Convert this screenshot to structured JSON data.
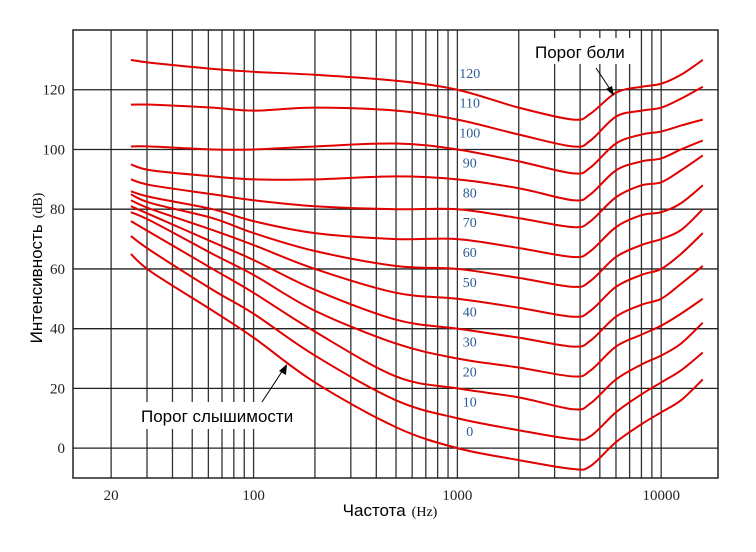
{
  "chart_data": {
    "type": "line",
    "title": "",
    "xlabel": "Частота",
    "xlabel_unit": "(Hz)",
    "ylabel": "Интенсивность",
    "ylabel_unit": "(dB)",
    "xscale": "log",
    "xlim": [
      13,
      19000
    ],
    "ylim": [
      -10,
      140
    ],
    "grid": true,
    "x_ticks": [
      20,
      100,
      1000,
      10000
    ],
    "x_tick_labels": [
      "20",
      "100",
      "1000",
      "10000"
    ],
    "y_ticks": [
      0,
      20,
      40,
      60,
      80,
      100,
      120
    ],
    "y_tick_labels": [
      "0",
      "20",
      "40",
      "60",
      "80",
      "100",
      "120"
    ],
    "x": [
      25,
      31.5,
      63,
      100,
      200,
      500,
      1000,
      2000,
      3700,
      4500,
      6000,
      8000,
      10000,
      12500,
      16000
    ],
    "series": [
      {
        "name": "0",
        "values": [
          65,
          59,
          46,
          37,
          22,
          7,
          0,
          -4,
          -7,
          -6,
          2,
          8,
          12,
          16,
          23
        ]
      },
      {
        "name": "10",
        "values": [
          71,
          66,
          53,
          45,
          31,
          16,
          10,
          6,
          3,
          4,
          12,
          18,
          22,
          26,
          32
        ]
      },
      {
        "name": "20",
        "values": [
          76,
          72,
          60,
          52,
          39,
          24,
          20,
          17,
          13,
          15,
          23,
          28,
          31,
          35,
          42
        ]
      },
      {
        "name": "30",
        "values": [
          79,
          76,
          65,
          58,
          46,
          35,
          30,
          27,
          24,
          26,
          34,
          38,
          41,
          45,
          50
        ]
      },
      {
        "name": "40",
        "values": [
          81,
          78,
          69,
          63,
          53,
          43,
          40,
          37,
          34,
          36,
          44,
          48,
          50,
          55,
          61
        ]
      },
      {
        "name": "50",
        "values": [
          83,
          80,
          73,
          68,
          60,
          52,
          50,
          47,
          44,
          46,
          54,
          58,
          60,
          65,
          72
        ]
      },
      {
        "name": "60",
        "values": [
          85,
          82,
          77,
          72,
          66,
          61,
          60,
          57,
          54,
          56,
          64,
          68,
          70,
          73,
          80
        ]
      },
      {
        "name": "70",
        "values": [
          86,
          84,
          80,
          76,
          72,
          70,
          70,
          67,
          64,
          66,
          74,
          78,
          79,
          82,
          88
        ]
      },
      {
        "name": "80",
        "values": [
          90,
          88,
          85,
          83,
          81,
          80,
          80,
          77,
          74,
          76,
          84,
          88,
          89,
          93,
          98
        ]
      },
      {
        "name": "90",
        "values": [
          95,
          93,
          91,
          90,
          90,
          91,
          90,
          87,
          83,
          85,
          93,
          96,
          97,
          100,
          103
        ]
      },
      {
        "name": "100",
        "values": [
          101,
          101,
          100,
          100,
          101,
          102,
          100,
          96,
          92,
          94,
          102,
          105,
          106,
          108,
          110
        ]
      },
      {
        "name": "110",
        "values": [
          115,
          115,
          114,
          113,
          114,
          113,
          110,
          105,
          101,
          103,
          111,
          113,
          114,
          117,
          121
        ]
      },
      {
        "name": "120",
        "values": [
          130,
          129,
          127,
          126,
          125,
          123,
          120,
          114,
          110,
          112,
          119,
          121,
          122,
          125,
          130
        ]
      }
    ],
    "line_color": "#e00000",
    "label_color": "#2a5a93",
    "annotations": [
      {
        "text": "Порог боли",
        "points_to_series": "120"
      },
      {
        "text": "Порог слышимости",
        "points_to_series": "0"
      }
    ]
  }
}
